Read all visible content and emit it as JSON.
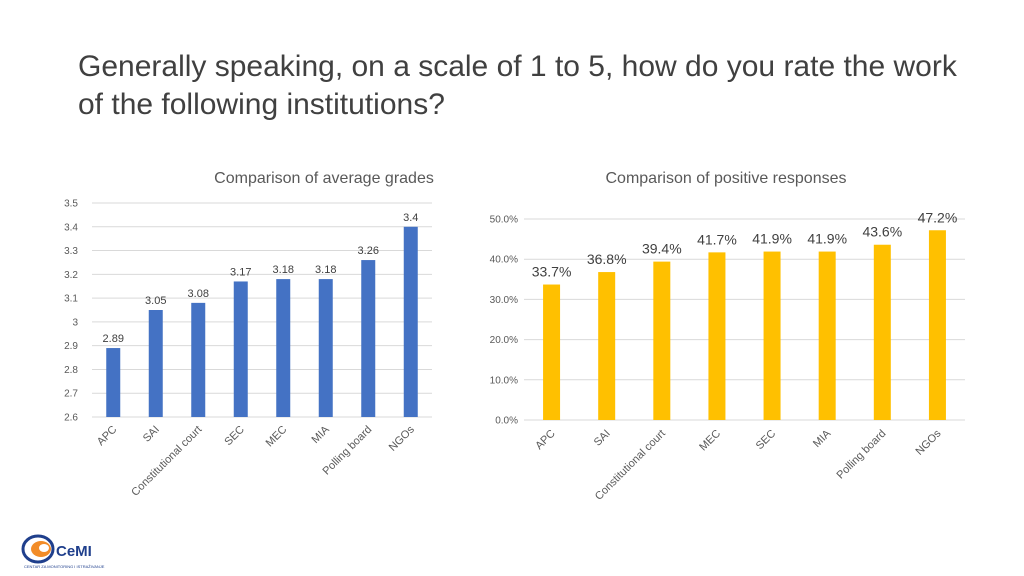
{
  "page": {
    "title": "Generally speaking, on a scale of 1 to 5, how do you rate the work of the following institutions?"
  },
  "logo": {
    "text": "CeMI",
    "subtitle": "CENTAR ZA MONITORING I ISTRAŽIVANJE"
  },
  "colors": {
    "left_bars": "#4472c4",
    "right_bars": "#ffc000",
    "grid": "#d9d9d9"
  },
  "chart_data": [
    {
      "type": "bar",
      "title": "Comparison of average grades",
      "categories": [
        "APC",
        "SAI",
        "Constitutional court",
        "SEC",
        "MEC",
        "MIA",
        "Polling board",
        "NGOs"
      ],
      "values": [
        2.89,
        3.05,
        3.08,
        3.17,
        3.18,
        3.18,
        3.26,
        3.4
      ],
      "labels": [
        "2.89",
        "3.05",
        "3.08",
        "3.17",
        "3.18",
        "3.18",
        "3.26",
        "3.4"
      ],
      "yticks": [
        "2.6",
        "2.7",
        "2.8",
        "2.9",
        "3",
        "3.1",
        "3.2",
        "3.3",
        "3.4",
        "3.5"
      ],
      "ylim": [
        2.6,
        3.5
      ],
      "xlabel": "",
      "ylabel": "",
      "grid": true
    },
    {
      "type": "bar",
      "title": "Comparison of positive responses",
      "categories": [
        "APC",
        "SAI",
        "Constitutional court",
        "MEC",
        "SEC",
        "MIA",
        "Polling board",
        "NGOs"
      ],
      "values": [
        33.7,
        36.8,
        39.4,
        41.7,
        41.9,
        41.9,
        43.6,
        47.2
      ],
      "labels": [
        "33.7%",
        "36.8%",
        "39.4%",
        "41.7%",
        "41.9%",
        "41.9%",
        "43.6%",
        "47.2%"
      ],
      "yticks": [
        "0.0%",
        "10.0%",
        "20.0%",
        "30.0%",
        "40.0%",
        "50.0%"
      ],
      "ylim": [
        0,
        50
      ],
      "xlabel": "",
      "ylabel": "",
      "grid": true
    }
  ]
}
